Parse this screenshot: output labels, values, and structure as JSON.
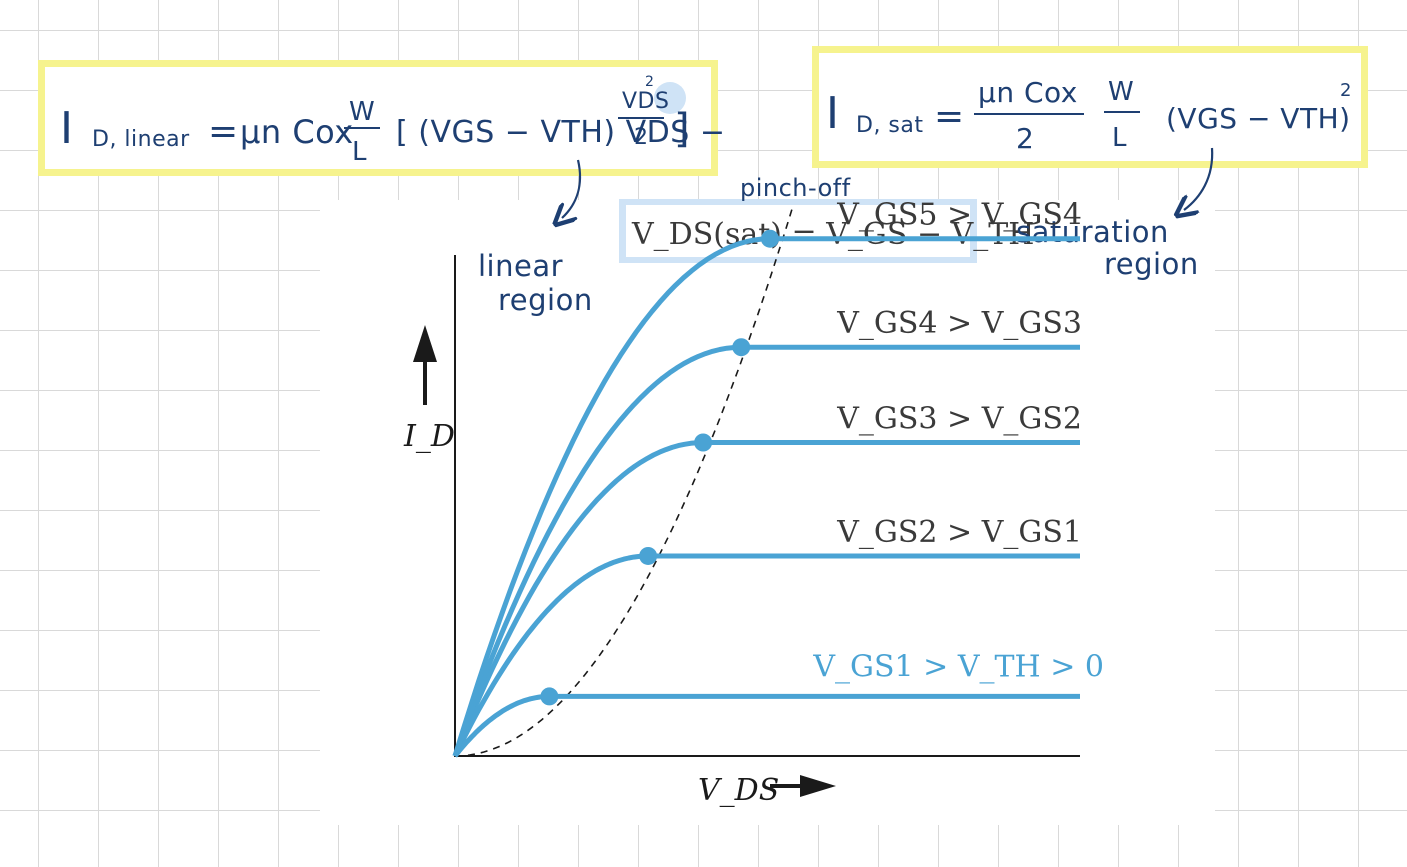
{
  "annotations": {
    "linear_eq_text": "I_D,linear = μnCox W/L [(VGS-VTH)VDS - VDS²/2]",
    "linear_lhs_main": "I",
    "linear_lhs_sub": "D, linear",
    "linear_eq_sign": "=",
    "linear_coeff": "μn Cox",
    "linear_w": "W",
    "linear_l": "L",
    "linear_bracket_content": "[ (VGS − VTH) VDS −",
    "linear_vds2_num": "VDS",
    "linear_vds2_exp": "2",
    "linear_vds2_den": "2",
    "linear_bracket_close": "]",
    "sat_eq_text": "I_D,sat = μnCox/2 W/L (VGS-VTH)²",
    "sat_lhs_main": "I",
    "sat_lhs_sub": "D, sat",
    "sat_eq_sign": "=",
    "sat_num": "μn Cox",
    "sat_den": "2",
    "sat_w": "W",
    "sat_l": "L",
    "sat_paren": "(VGS − VTH)",
    "sat_exp": "2",
    "pinch_off_label": "pinch-off",
    "vds_sat_eq": "V_DS(sat) = V_GS − V_TH",
    "linear_region_line1": "linear",
    "linear_region_line2": "region",
    "saturation_region_line1": "saturation",
    "saturation_region_line2": "region"
  },
  "chart_data": {
    "type": "line",
    "xlabel": "V_DS",
    "ylabel": "I_D",
    "xlim": [
      0,
      10
    ],
    "ylim": [
      0,
      10
    ],
    "grid": false,
    "series": [
      {
        "name": "V_GS1 > V_TH > 0",
        "vsat": 1.51,
        "isat": 0.95,
        "x_end": 10
      },
      {
        "name": "V_GS2 > V_GS1",
        "vsat": 3.09,
        "isat": 3.19,
        "x_end": 10
      },
      {
        "name": "V_GS3 > V_GS2",
        "vsat": 3.97,
        "isat": 5.0,
        "x_end": 10
      },
      {
        "name": "V_GS4 > V_GS3",
        "vsat": 4.58,
        "isat": 6.52,
        "x_end": 10
      },
      {
        "name": "V_GS5 > V_GS4",
        "vsat": 5.04,
        "isat": 8.25,
        "x_end": 10
      }
    ],
    "pinch_off_curve": "I = 0.3 · VDS²",
    "colors": {
      "curve": "#4aa3d4",
      "label_gs1": "#4aa3d4",
      "label_other": "#3a3a3a",
      "pinch_curve": "#1a1a1a",
      "annotation": "#1e3f72",
      "highlight": "#f6f38e",
      "pinch_box": "#cfe3f6"
    }
  }
}
